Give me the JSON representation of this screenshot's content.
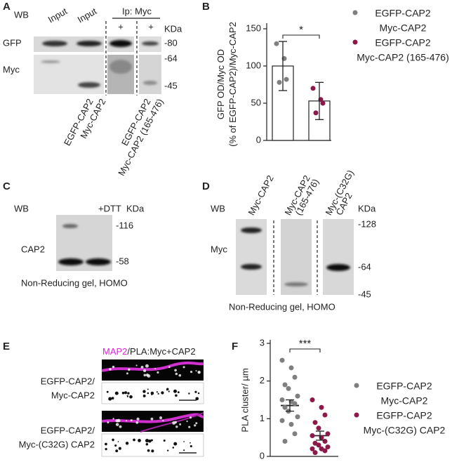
{
  "blots": {
    "A": {
      "letter": "A",
      "wb": "WB",
      "lanes": [
        "Input",
        "Input"
      ],
      "ip": "Ip: Myc",
      "plus": [
        "+",
        "+"
      ],
      "kda": "KDa",
      "rows": [
        "GFP",
        "Myc"
      ],
      "markers": [
        "-80",
        "-64",
        "-45"
      ],
      "samples": [
        "EGFP-CAP2",
        "Myc-CAP2",
        "EGFP-CAP2",
        "Myc-CAP2 (165-476)"
      ]
    },
    "C": {
      "letter": "C",
      "wb": "WB",
      "lanes": [
        "+DTT"
      ],
      "kda": "KDa",
      "rows": [
        "CAP2"
      ],
      "markers": [
        "-116",
        "-58"
      ],
      "caption": "Non-Reducing gel, HOMO"
    },
    "D": {
      "letter": "D",
      "wb": "WB",
      "lanes": [
        [
          "Myc-CAP2"
        ],
        [
          "Myc-CAP2",
          "(165-476)"
        ],
        [
          "Myc-(C32G)",
          "CAP2"
        ]
      ],
      "kda": "KDa",
      "rows": [
        "Myc"
      ],
      "markers": [
        "-128",
        "-64",
        "-45"
      ],
      "caption": "Non-Reducing gel, HOMO"
    },
    "E": {
      "letter": "E",
      "stain": [
        "MAP2",
        "/PLA:Myc+CAP2"
      ],
      "rows": [
        [
          "EGFP-CAP2/",
          "Myc-CAP2"
        ],
        [
          "EGFP-CAP2/",
          "Myc-(C32G) CAP2"
        ]
      ]
    }
  },
  "chart_data": [
    {
      "type": "bar",
      "panel": "B",
      "ylabel": [
        "GFP OD/Myc OD",
        "(% of EGFP-CAP2)/Myc-CAP2"
      ],
      "ylim": [
        0,
        150
      ],
      "yticks": [
        0,
        50,
        100,
        150
      ],
      "significance": "*",
      "series": [
        {
          "name": [
            "EGFP-CAP2",
            "Myc-CAP2"
          ],
          "color": "#7f7f7f",
          "mean": 100,
          "error": 33,
          "points": [
            130,
            110,
            82,
            78
          ]
        },
        {
          "name": [
            "EGFP-CAP2",
            "Myc-CAP2 (165-476)"
          ],
          "color": "#8b1a4a",
          "mean": 53,
          "error": 25,
          "points": [
            70,
            55,
            50,
            37
          ]
        }
      ]
    },
    {
      "type": "dot",
      "panel": "F",
      "ylabel": [
        "PLA cluster/ µm"
      ],
      "ylim": [
        0,
        3
      ],
      "yticks": [
        0,
        1,
        2,
        3
      ],
      "significance": "***",
      "series": [
        {
          "name": [
            "EGFP-CAP2",
            "Myc-CAP2"
          ],
          "color": "#7f7f7f",
          "mean": 1.35,
          "error": 0.15,
          "points": [
            2.55,
            2.35,
            2.1,
            1.9,
            1.8,
            1.6,
            1.5,
            1.45,
            1.4,
            1.3,
            1.2,
            1.05,
            0.95,
            0.85,
            0.6,
            0.4
          ]
        },
        {
          "name": [
            "EGFP-CAP2",
            "Myc-(C32G) CAP2"
          ],
          "color": "#8b1a4a",
          "mean": 0.55,
          "error": 0.12,
          "points": [
            1.5,
            1.3,
            1.1,
            0.9,
            0.75,
            0.6,
            0.55,
            0.5,
            0.4,
            0.35,
            0.3,
            0.25,
            0.2,
            0.2,
            0.15,
            0.1
          ]
        }
      ]
    }
  ]
}
